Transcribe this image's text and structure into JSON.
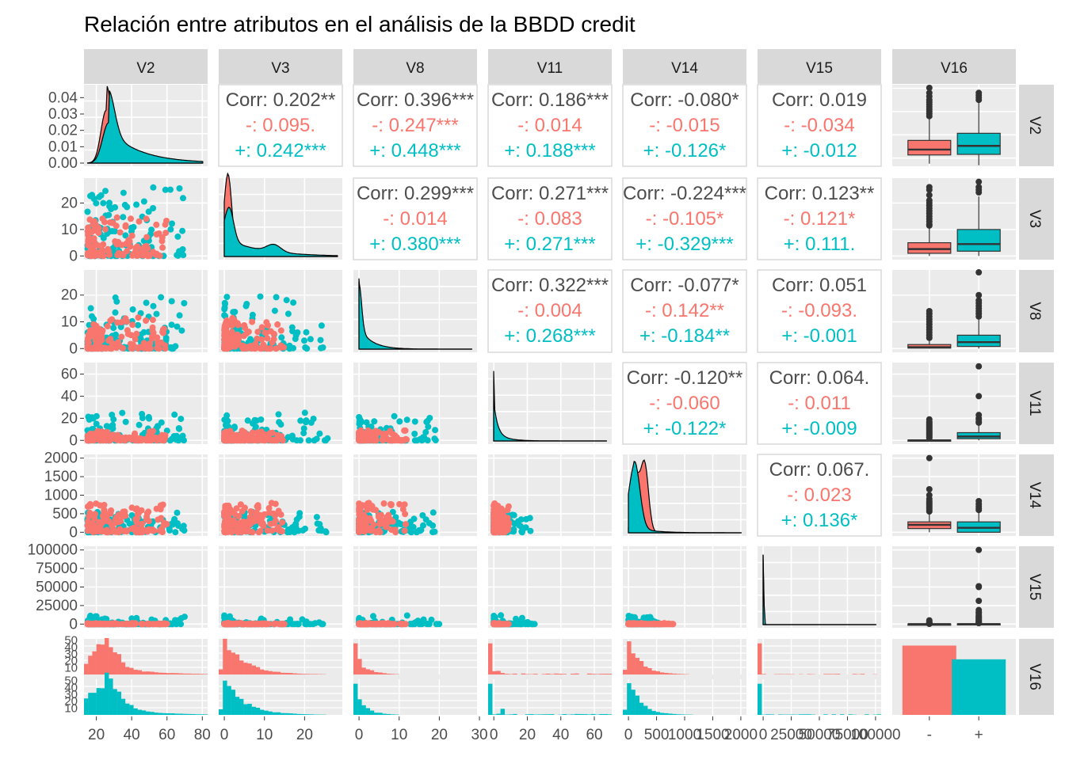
{
  "chart_data": {
    "type": "scatter-matrix",
    "title": "Relación entre atributos en el análisis de la BBDD credit",
    "variables": [
      "V2",
      "V3",
      "V8",
      "V11",
      "V14",
      "V15",
      "V16"
    ],
    "groups": [
      {
        "name": "-",
        "color": "#F8766D"
      },
      {
        "name": "+",
        "color": "#00BFC4"
      }
    ],
    "axes": {
      "V2": {
        "range": [
          13,
          83
        ],
        "ticks": [
          20,
          40,
          60,
          80
        ],
        "tick_labels": [
          "20",
          "40",
          "60",
          "80"
        ]
      },
      "V3": {
        "range": [
          -1.4,
          29.4
        ],
        "ticks": [
          0,
          10,
          20
        ],
        "tick_labels": [
          "0",
          "10",
          "20"
        ]
      },
      "V8": {
        "range": [
          -1.4,
          29.4
        ],
        "ticks": [
          0,
          10,
          20,
          30
        ],
        "tick_labels": [
          "0",
          "10",
          "20",
          "30"
        ]
      },
      "V11": {
        "range": [
          -3.4,
          70.4
        ],
        "ticks": [
          0,
          20,
          40,
          60
        ],
        "tick_labels": [
          "0",
          "20",
          "40",
          "60"
        ]
      },
      "V14": {
        "range": [
          -100,
          2100
        ],
        "ticks": [
          0,
          500,
          1000,
          1500,
          2000
        ],
        "tick_labels": [
          "0",
          "500",
          "1000",
          "1500",
          "2000"
        ]
      },
      "V15": {
        "range": [
          -5000,
          105000
        ],
        "ticks": [
          0,
          25000,
          50000,
          75000,
          100000
        ],
        "tick_labels": [
          "0",
          "25000",
          "50000",
          "75000",
          "100000"
        ]
      },
      "V16": {
        "categories": [
          "-",
          "+"
        ]
      }
    },
    "density_v2_ticks": [
      0.0,
      0.01,
      0.02,
      0.03,
      0.04
    ],
    "density_v2_tick_labels": [
      "0.00",
      "0.01",
      "0.02",
      "0.03",
      "0.04"
    ],
    "histogram_count_ticks": [
      10,
      20,
      30,
      40,
      50
    ],
    "histogram_count_tick_labels": [
      "10",
      "20",
      "30",
      "40",
      "50"
    ],
    "correlations": [
      {
        "row": "V2",
        "col": "V3",
        "corr": "Corr: 0.202**",
        "neg": "-: 0.095.",
        "pos": "+: 0.242***"
      },
      {
        "row": "V2",
        "col": "V8",
        "corr": "Corr: 0.396***",
        "neg": "-: 0.247***",
        "pos": "+: 0.448***"
      },
      {
        "row": "V2",
        "col": "V11",
        "corr": "Corr: 0.186***",
        "neg": "-: 0.014",
        "pos": "+: 0.188***"
      },
      {
        "row": "V2",
        "col": "V14",
        "corr": "Corr: -0.080*",
        "neg": "-: -0.015",
        "pos": "+: -0.126*"
      },
      {
        "row": "V2",
        "col": "V15",
        "corr": "Corr: 0.019",
        "neg": "-: -0.034",
        "pos": "+: -0.012"
      },
      {
        "row": "V3",
        "col": "V8",
        "corr": "Corr: 0.299***",
        "neg": "-: 0.014",
        "pos": "+: 0.380***"
      },
      {
        "row": "V3",
        "col": "V11",
        "corr": "Corr: 0.271***",
        "neg": "-: 0.083",
        "pos": "+: 0.271***"
      },
      {
        "row": "V3",
        "col": "V14",
        "corr": "Corr: -0.224***",
        "neg": "-: -0.105*",
        "pos": "+: -0.329***"
      },
      {
        "row": "V3",
        "col": "V15",
        "corr": "Corr: 0.123**",
        "neg": "-: 0.121*",
        "pos": "+: 0.111."
      },
      {
        "row": "V8",
        "col": "V11",
        "corr": "Corr: 0.322***",
        "neg": "-: 0.004",
        "pos": "+: 0.268***"
      },
      {
        "row": "V8",
        "col": "V14",
        "corr": "Corr: -0.077*",
        "neg": "-: 0.142**",
        "pos": "+: -0.184**"
      },
      {
        "row": "V8",
        "col": "V15",
        "corr": "Corr: 0.051",
        "neg": "-: -0.093.",
        "pos": "+: -0.001"
      },
      {
        "row": "V11",
        "col": "V14",
        "corr": "Corr: -0.120**",
        "neg": "-: -0.060",
        "pos": "+: -0.122*"
      },
      {
        "row": "V11",
        "col": "V15",
        "corr": "Corr: 0.064.",
        "neg": "-: 0.011",
        "pos": "+: -0.009"
      },
      {
        "row": "V14",
        "col": "V15",
        "corr": "Corr: 0.067.",
        "neg": "-: 0.023",
        "pos": "+: 0.136*"
      }
    ],
    "boxplots": {
      "V2": {
        "-": {
          "q1": 22.7,
          "median": 27.3,
          "q3": 35.2,
          "lo": 15.2,
          "hi": 54,
          "outliers": [
            56,
            58,
            60,
            62,
            64,
            66,
            68,
            70,
            73,
            76,
            80.3
          ]
        },
        "+": {
          "q1": 23.2,
          "median": 30.5,
          "q3": 41.3,
          "lo": 13.8,
          "hi": 68,
          "outliers": [
            70,
            72,
            74,
            76
          ]
        }
      },
      "V3": {
        "-": {
          "q1": 1.0,
          "median": 2.6,
          "q3": 5.0,
          "lo": 0,
          "hi": 11,
          "outliers": [
            11.5,
            12,
            13,
            14,
            15,
            16,
            17,
            18,
            19,
            20,
            21,
            23,
            25,
            26
          ]
        },
        "+": {
          "q1": 1.8,
          "median": 4.5,
          "q3": 10,
          "lo": 0,
          "hi": 22.5,
          "outliers": [
            24,
            25,
            26,
            28
          ]
        }
      },
      "V8": {
        "-": {
          "q1": 0.16,
          "median": 0.5,
          "q3": 1.5,
          "lo": 0,
          "hi": 3.5,
          "outliers": [
            4,
            5,
            6,
            7,
            8,
            9,
            10,
            11,
            12,
            13,
            14
          ]
        },
        "+": {
          "q1": 0.8,
          "median": 2.4,
          "q3": 5.0,
          "lo": 0,
          "hi": 11,
          "outliers": [
            12,
            13,
            14,
            15,
            16,
            17,
            18,
            20,
            28.5
          ]
        }
      },
      "V11": {
        "-": {
          "q1": 0,
          "median": 0,
          "q3": 0.3,
          "lo": 0,
          "hi": 1,
          "outliers": [
            2,
            3,
            4,
            5,
            6,
            7,
            8,
            9,
            10,
            11,
            12,
            13,
            14,
            15,
            16,
            17,
            19
          ]
        },
        "+": {
          "q1": 1.5,
          "median": 3.5,
          "q3": 7,
          "lo": 0,
          "hi": 15,
          "outliers": [
            16,
            17,
            19,
            20,
            23,
            40,
            67
          ]
        }
      },
      "V14": {
        "-": {
          "q1": 100,
          "median": 200,
          "q3": 280,
          "lo": 0,
          "hi": 540,
          "outliers": [
            560,
            600,
            640,
            680,
            720,
            760,
            800,
            840,
            900,
            1000,
            1160,
            2000
          ]
        },
        "+": {
          "q1": 0,
          "median": 120,
          "q3": 280,
          "lo": 0,
          "hi": 560,
          "outliers": [
            600,
            640,
            700,
            760,
            840
          ]
        }
      },
      "V15": {
        "-": {
          "q1": 0,
          "median": 0,
          "q3": 50,
          "lo": 0,
          "hi": 120,
          "outliers": [
            300,
            600,
            1000,
            1500,
            2000,
            3000,
            5000
          ]
        },
        "+": {
          "q1": 0,
          "median": 5,
          "q3": 400,
          "lo": 0,
          "hi": 1000,
          "outliers": [
            1200,
            1600,
            2000,
            3000,
            4000,
            5000,
            6000,
            7000,
            8000,
            9000,
            10000,
            11000,
            13000,
            15000,
            16000,
            19000,
            31300,
            50000,
            51100,
            100000
          ]
        }
      }
    },
    "v16_counts": {
      "-": 383,
      "+": 307
    }
  }
}
